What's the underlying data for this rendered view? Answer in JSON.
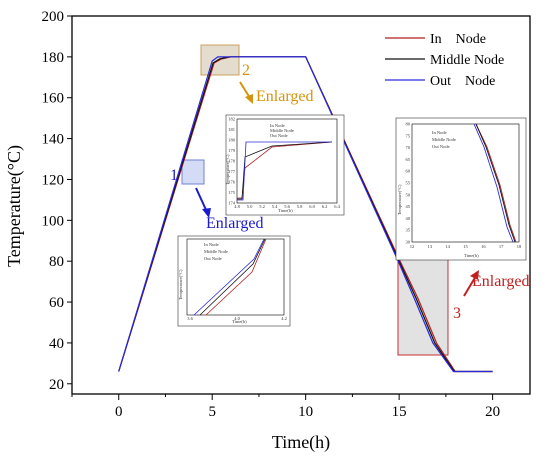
{
  "chart_data": {
    "type": "line",
    "xlabel": "Time(h)",
    "ylabel": "Temperature(°C)",
    "xlim": [
      -2.5,
      22
    ],
    "ylim": [
      15,
      200
    ],
    "x_ticks": [
      "0",
      "5",
      "10",
      "15",
      "20"
    ],
    "y_ticks": [
      "20",
      "40",
      "60",
      "80",
      "100",
      "120",
      "140",
      "160",
      "180",
      "200"
    ],
    "legend_position": "top-right",
    "series": [
      {
        "name": "In    Node",
        "color": "#b22222",
        "points": [
          [
            0,
            26
          ],
          [
            5.1,
            177
          ],
          [
            5.5,
            179
          ],
          [
            6,
            180
          ],
          [
            10,
            180
          ],
          [
            15.05,
            80
          ],
          [
            16,
            62
          ],
          [
            17,
            40
          ],
          [
            18,
            26
          ],
          [
            20,
            26
          ]
        ]
      },
      {
        "name": "Middle Node",
        "color": "#111111",
        "points": [
          [
            0,
            26
          ],
          [
            5.05,
            177
          ],
          [
            5.4,
            179
          ],
          [
            5.9,
            180
          ],
          [
            10,
            180
          ],
          [
            15,
            80
          ],
          [
            15.9,
            62
          ],
          [
            16.9,
            40
          ],
          [
            17.95,
            26
          ],
          [
            20,
            26
          ]
        ]
      },
      {
        "name": "Out    Node",
        "color": "#2b2bdb",
        "points": [
          [
            0,
            26
          ],
          [
            5,
            178
          ],
          [
            5.3,
            180
          ],
          [
            10,
            180
          ],
          [
            14.95,
            80
          ],
          [
            15.8,
            62
          ],
          [
            16.8,
            40
          ],
          [
            17.9,
            26
          ],
          [
            20,
            26
          ]
        ]
      }
    ],
    "annotations": {
      "label_1": "1",
      "label_2": "2",
      "label_3": "3",
      "enlarged_1": "Enlarged",
      "enlarged_2": "Enlarged",
      "enlarged_3": "Enlarged",
      "colors": {
        "box1": "#6f7fd8",
        "box2": "#c8a060",
        "box3": "#c03030",
        "label1": "#1a1acc",
        "label2": "#d4940a",
        "label3": "#c02020"
      }
    },
    "insets": {
      "inset1": {
        "xlabel": "Time(h)",
        "ylabel": "Temperature(°C)",
        "x_ticks": [
          "3.6",
          "4.0",
          "4.2"
        ],
        "legend": [
          "In    Node",
          "Middle Node",
          "Out    Node"
        ]
      },
      "inset2": {
        "xlabel": "Time(h)",
        "ylabel": "Temperature(°C)",
        "x_ticks": [
          "4.8",
          "5.0",
          "5.2",
          "5.4",
          "5.6",
          "5.8",
          "6.0",
          "6.2",
          "6.4"
        ],
        "y_ticks": [
          "174",
          "175",
          "176",
          "177",
          "178",
          "179",
          "180",
          "181",
          "182"
        ],
        "legend": [
          "In    Node",
          "Middle Node",
          "Out    Node"
        ]
      },
      "inset3": {
        "xlabel": "Time(h)",
        "ylabel": "Temperature(°C)",
        "x_ticks": [
          "12",
          "13",
          "14",
          "15",
          "16",
          "17",
          "18"
        ],
        "y_ticks": [
          "30",
          "35",
          "40",
          "45",
          "50",
          "55",
          "60",
          "65",
          "70",
          "75",
          "80"
        ],
        "legend": [
          "In    Node",
          "Middle Node",
          "Out    Node"
        ]
      }
    }
  }
}
